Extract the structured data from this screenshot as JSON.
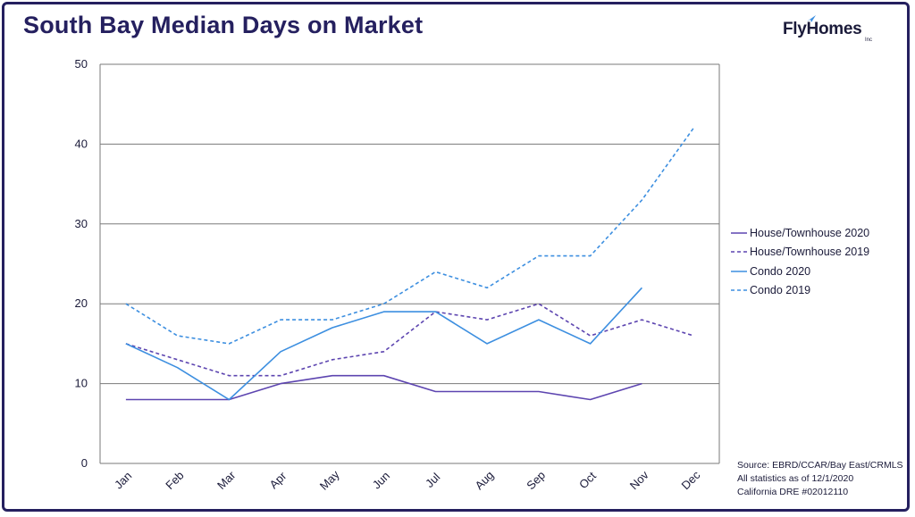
{
  "header": {
    "title": "South Bay Median Days on Market"
  },
  "logo": {
    "text": "FlyHomes",
    "sub": "Inc"
  },
  "colors": {
    "frame": "#25205f",
    "title": "#25205f",
    "house": "#5d45b0",
    "condo": "#3d8fe0",
    "gridline": "#7a7a7a",
    "text": "#1b1b3a"
  },
  "source": {
    "line1": "Source: EBRD/CCAR/Bay East/CRMLS",
    "line2": "All statistics as of 12/1/2020",
    "line3": "California DRE #02012110"
  },
  "chart_data": {
    "type": "line",
    "title": "South Bay Median Days on Market",
    "xlabel": "",
    "ylabel": "",
    "categories": [
      "Jan",
      "Feb",
      "Mar",
      "Apr",
      "May",
      "Jun",
      "Jul",
      "Aug",
      "Sep",
      "Oct",
      "Nov",
      "Dec"
    ],
    "ylim": [
      0,
      50
    ],
    "yticks": [
      0,
      10,
      20,
      30,
      40,
      50
    ],
    "grid": "horizontal",
    "legend_position": "right",
    "series": [
      {
        "name": "House/Townhouse 2020",
        "values": [
          8,
          8,
          8,
          10,
          11,
          11,
          9,
          9,
          9,
          8,
          10,
          null
        ],
        "color": "#5d45b0",
        "dash": false
      },
      {
        "name": "House/Townhouse 2019",
        "values": [
          15,
          13,
          11,
          11,
          13,
          14,
          19,
          18,
          20,
          16,
          18,
          16
        ],
        "color": "#5d45b0",
        "dash": true
      },
      {
        "name": "Condo 2020",
        "values": [
          15,
          12,
          8,
          14,
          17,
          19,
          19,
          15,
          18,
          15,
          22,
          null
        ],
        "color": "#3d8fe0",
        "dash": false
      },
      {
        "name": "Condo 2019",
        "values": [
          20,
          16,
          15,
          18,
          18,
          20,
          24,
          22,
          26,
          26,
          33,
          42
        ],
        "color": "#3d8fe0",
        "dash": true
      }
    ]
  }
}
